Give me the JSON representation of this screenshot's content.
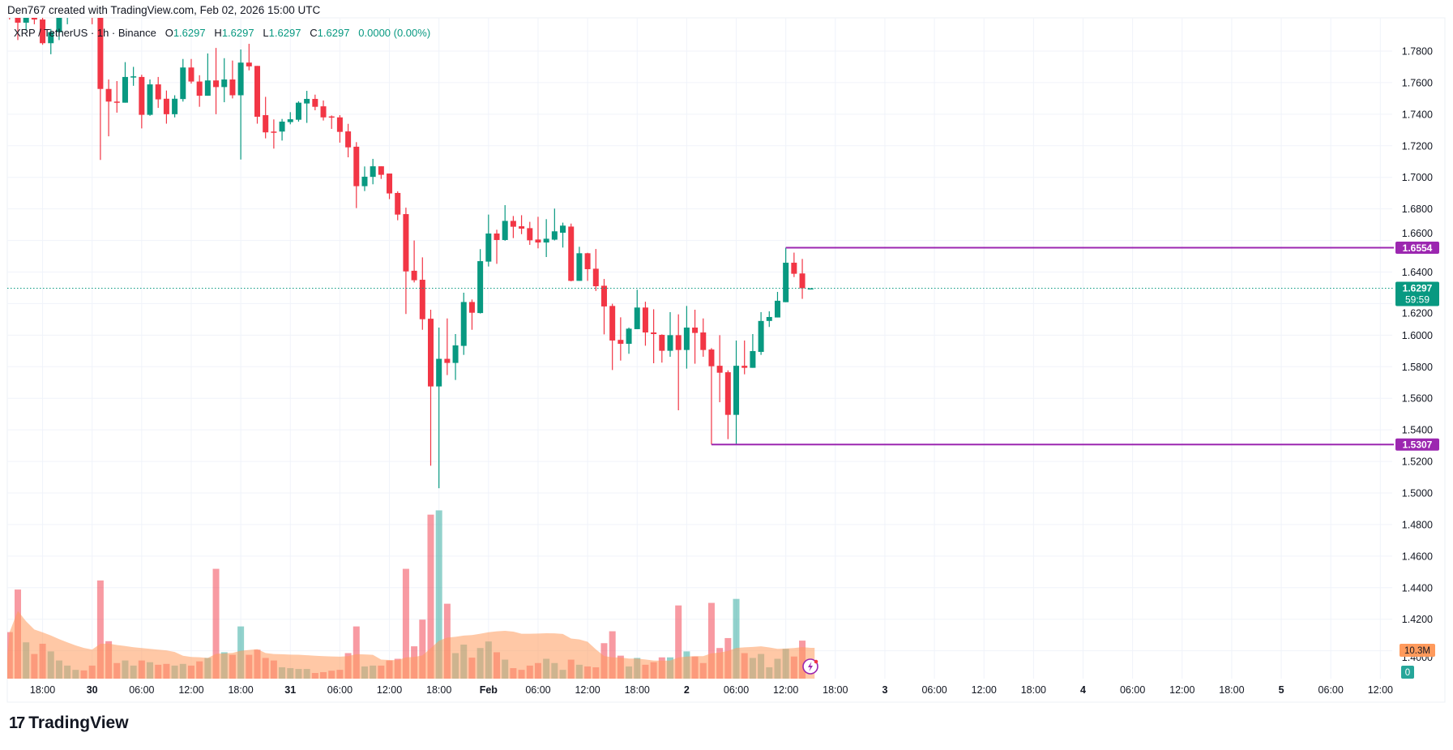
{
  "header": {
    "attribution": "Den767 created with TradingView.com, Feb 02, 2026 15:00 UTC"
  },
  "legend": {
    "symbol": "XRP / TetherUS · 1h · Binance",
    "open_label": "O",
    "open": "1.6297",
    "high_label": "H",
    "high": "1.6297",
    "low_label": "L",
    "low": "1.6297",
    "close_label": "C",
    "close": "1.6297",
    "change": "0.0000 (0.00%)"
  },
  "colors": {
    "up": "#089981",
    "down": "#f23645",
    "level_line": "#9c27b0",
    "volume_ma": "#ff9a5c",
    "grid": "#f0f3fa"
  },
  "price_axis": {
    "ticks": [
      "1.7800",
      "1.7600",
      "1.7400",
      "1.7200",
      "1.7000",
      "1.6800",
      "1.6600",
      "1.6400",
      "1.6200",
      "1.6000",
      "1.5800",
      "1.5600",
      "1.5400",
      "1.5200",
      "1.5000",
      "1.4800",
      "1.4600",
      "1.4400",
      "1.4200",
      "1.4000"
    ]
  },
  "time_axis": {
    "ticks": [
      "18:00",
      "30",
      "06:00",
      "12:00",
      "18:00",
      "31",
      "06:00",
      "12:00",
      "18:00",
      "Feb",
      "06:00",
      "12:00",
      "18:00",
      "2",
      "06:00",
      "12:00",
      "18:00",
      "3",
      "06:00",
      "12:00",
      "18:00",
      "4",
      "06:00",
      "12:00",
      "18:00",
      "5",
      "06:00",
      "12:00"
    ]
  },
  "levels": [
    {
      "label": "1.6554",
      "price": 1.6554,
      "from_candle": 94
    },
    {
      "label": "1.5307",
      "price": 1.5307,
      "from_candle": 85
    }
  ],
  "current_price": {
    "label": "1.6297",
    "countdown": "59:59",
    "price": 1.6297
  },
  "volume_labels": {
    "ma": "10.3M",
    "current": "0"
  },
  "footer": {
    "logo_text": "TradingView"
  },
  "icons": {
    "alert": "lightning-icon"
  },
  "chart_data": {
    "type": "candlestick",
    "interval": "1h",
    "ohlc": [
      [
        1.812,
        1.818,
        1.8,
        1.806
      ],
      [
        1.806,
        1.81,
        1.787,
        1.798
      ],
      [
        1.798,
        1.808,
        1.793,
        1.805
      ],
      [
        1.805,
        1.81,
        1.797,
        1.8
      ],
      [
        1.8,
        1.806,
        1.784,
        1.785
      ],
      [
        1.785,
        1.794,
        1.778,
        1.792
      ],
      [
        1.792,
        1.805,
        1.787,
        1.803
      ],
      [
        1.803,
        1.812,
        1.797,
        1.809
      ],
      [
        1.809,
        1.815,
        1.803,
        1.811
      ],
      [
        1.811,
        1.814,
        1.804,
        1.806
      ],
      [
        1.806,
        1.81,
        1.797,
        1.804
      ],
      [
        1.804,
        1.806,
        1.711,
        1.756
      ],
      [
        1.756,
        1.762,
        1.726,
        1.748
      ],
      [
        1.748,
        1.761,
        1.741,
        1.7479
      ],
      [
        1.7473,
        1.773,
        1.7473,
        1.7636
      ],
      [
        1.7636,
        1.77,
        1.758,
        1.764
      ],
      [
        1.7636,
        1.765,
        1.731,
        1.7396
      ],
      [
        1.7396,
        1.762,
        1.739,
        1.7589
      ],
      [
        1.7589,
        1.7636,
        1.744,
        1.7494
      ],
      [
        1.7498,
        1.755,
        1.734,
        1.74
      ],
      [
        1.74,
        1.752,
        1.738,
        1.7498
      ],
      [
        1.7496,
        1.775,
        1.748,
        1.7696
      ],
      [
        1.7696,
        1.775,
        1.7594,
        1.7607
      ],
      [
        1.7607,
        1.7647,
        1.7447,
        1.7517
      ],
      [
        1.7517,
        1.7785,
        1.7517,
        1.7614
      ],
      [
        1.7614,
        1.782,
        1.74,
        1.7572
      ],
      [
        1.7572,
        1.7755,
        1.7476,
        1.762
      ],
      [
        1.762,
        1.774,
        1.75,
        1.752
      ],
      [
        1.752,
        1.781,
        1.7113,
        1.7727
      ],
      [
        1.7727,
        1.7846,
        1.7678,
        1.7703
      ],
      [
        1.7706,
        1.7706,
        1.734,
        1.7384
      ],
      [
        1.7394,
        1.751,
        1.7247,
        1.7285
      ],
      [
        1.729,
        1.7367,
        1.7182,
        1.7288
      ],
      [
        1.729,
        1.737,
        1.7233,
        1.7353
      ],
      [
        1.735,
        1.7413,
        1.7336,
        1.7368
      ],
      [
        1.7365,
        1.7482,
        1.7353,
        1.7473
      ],
      [
        1.7468,
        1.7548,
        1.7345,
        1.7497
      ],
      [
        1.7497,
        1.7524,
        1.7425,
        1.7447
      ],
      [
        1.745,
        1.7487,
        1.736,
        1.738
      ],
      [
        1.7386,
        1.7392,
        1.7307,
        1.7384
      ],
      [
        1.738,
        1.7394,
        1.722,
        1.7288
      ],
      [
        1.7291,
        1.7339,
        1.7127,
        1.719
      ],
      [
        1.7194,
        1.7223,
        1.6805,
        1.6944
      ],
      [
        1.6944,
        1.7069,
        1.6913,
        1.7004
      ],
      [
        1.7003,
        1.7117,
        1.6956,
        1.707
      ],
      [
        1.707,
        1.707,
        1.699,
        1.7016
      ],
      [
        1.7024,
        1.7024,
        1.6862,
        1.6898
      ],
      [
        1.6901,
        1.6911,
        1.6728,
        1.6764
      ],
      [
        1.6767,
        1.6808,
        1.6134,
        1.6404
      ],
      [
        1.6408,
        1.66,
        1.6334,
        1.6348
      ],
      [
        1.6351,
        1.6493,
        1.6034,
        1.6101
      ],
      [
        1.6104,
        1.6161,
        1.5173,
        1.5675
      ],
      [
        1.5675,
        1.6048,
        1.503,
        1.585
      ],
      [
        1.585,
        1.6106,
        1.5747,
        1.5824
      ],
      [
        1.5824,
        1.6007,
        1.5716,
        1.5935
      ],
      [
        1.5932,
        1.6269,
        1.5875,
        1.621
      ],
      [
        1.621,
        1.6226,
        1.6034,
        1.6142
      ],
      [
        1.614,
        1.6545,
        1.6137,
        1.6469
      ],
      [
        1.6466,
        1.6764,
        1.6435,
        1.6644
      ],
      [
        1.6644,
        1.6668,
        1.6452,
        1.6603
      ],
      [
        1.6603,
        1.6824,
        1.6598,
        1.6724
      ],
      [
        1.6724,
        1.6755,
        1.6615,
        1.6687
      ],
      [
        1.669,
        1.676,
        1.664,
        1.6675
      ],
      [
        1.6678,
        1.6718,
        1.6572,
        1.6601
      ],
      [
        1.6606,
        1.675,
        1.655,
        1.6587
      ],
      [
        1.6587,
        1.6735,
        1.6495,
        1.6611
      ],
      [
        1.6605,
        1.6802,
        1.66,
        1.6658
      ],
      [
        1.6649,
        1.6713,
        1.6555,
        1.6694
      ],
      [
        1.6688,
        1.6707,
        1.6341,
        1.6344
      ],
      [
        1.6344,
        1.656,
        1.6344,
        1.6519
      ],
      [
        1.6519,
        1.6522,
        1.6344,
        1.6418
      ],
      [
        1.6421,
        1.6546,
        1.628,
        1.631
      ],
      [
        1.6313,
        1.6356,
        1.6005,
        1.6182
      ],
      [
        1.6185,
        1.6199,
        1.5779,
        1.5966
      ],
      [
        1.597,
        1.6113,
        1.5839,
        1.5945
      ],
      [
        1.5945,
        1.6048,
        1.5882,
        1.6041
      ],
      [
        1.6038,
        1.6288,
        1.6038,
        1.6175
      ],
      [
        1.6175,
        1.6212,
        1.5933,
        1.6017
      ],
      [
        1.6017,
        1.6164,
        1.5822,
        1.6007
      ],
      [
        1.6002,
        1.6005,
        1.5826,
        1.5901
      ],
      [
        1.5901,
        1.6146,
        1.5863,
        1.6
      ],
      [
        1.6,
        1.6132,
        1.5524,
        1.5906
      ],
      [
        1.5906,
        1.6185,
        1.5788,
        1.6048
      ],
      [
        1.6048,
        1.6161,
        1.5819,
        1.6014
      ],
      [
        1.6017,
        1.6106,
        1.5863,
        1.5906
      ],
      [
        1.5909,
        1.5918,
        1.5307,
        1.5803
      ],
      [
        1.5806,
        1.6,
        1.5575,
        1.5762
      ],
      [
        1.5765,
        1.5777,
        1.5341,
        1.5495
      ],
      [
        1.5495,
        1.5966,
        1.5307,
        1.5806
      ],
      [
        1.5806,
        1.5966,
        1.5752,
        1.5793
      ],
      [
        1.5793,
        1.6007,
        1.5793,
        1.5899
      ],
      [
        1.5894,
        1.6146,
        1.5875,
        1.609
      ],
      [
        1.609,
        1.6151,
        1.6052,
        1.6115
      ],
      [
        1.6112,
        1.6274,
        1.6112,
        1.6218
      ],
      [
        1.6209,
        1.6554,
        1.6209,
        1.6459
      ],
      [
        1.6459,
        1.6523,
        1.6368,
        1.6389
      ],
      [
        1.6391,
        1.6483,
        1.623,
        1.6297
      ],
      [
        1.6297,
        1.6297,
        1.6297,
        1.6297
      ]
    ],
    "volume_millions": [
      16.4,
      31.4,
      12.8,
      8.7,
      12.3,
      9.6,
      6.4,
      4.6,
      3.1,
      2.9,
      4.6,
      34.6,
      13.2,
      5.5,
      6.4,
      4.6,
      6.4,
      5.8,
      4.9,
      5.2,
      4.6,
      5.2,
      4.6,
      6.1,
      7.3,
      38.7,
      9.3,
      8.4,
      18.4,
      8.4,
      10.2,
      7.3,
      6.4,
      4.0,
      3.7,
      3.4,
      3.4,
      2.0,
      2.3,
      2.8,
      3.1,
      9.0,
      18.4,
      4.3,
      4.6,
      4.6,
      6.4,
      7.0,
      38.7,
      11.4,
      20.8,
      57.8,
      59.3,
      26.4,
      9.0,
      12.0,
      7.4,
      10.8,
      13.1,
      9.3,
      6.7,
      3.7,
      3.1,
      4.6,
      5.5,
      7.0,
      5.5,
      3.1,
      6.7,
      4.9,
      4.3,
      4.0,
      12.5,
      16.7,
      8.1,
      4.3,
      7.3,
      4.9,
      5.8,
      7.5,
      7.5,
      25.8,
      9.6,
      7.8,
      5.5,
      26.7,
      10.8,
      14.3,
      28.1,
      9.0,
      7.3,
      8.7,
      4.0,
      7.0,
      10.5,
      7.8,
      13.4,
      0
    ],
    "price_range": [
      1.39,
      1.82
    ],
    "grid": true
  }
}
